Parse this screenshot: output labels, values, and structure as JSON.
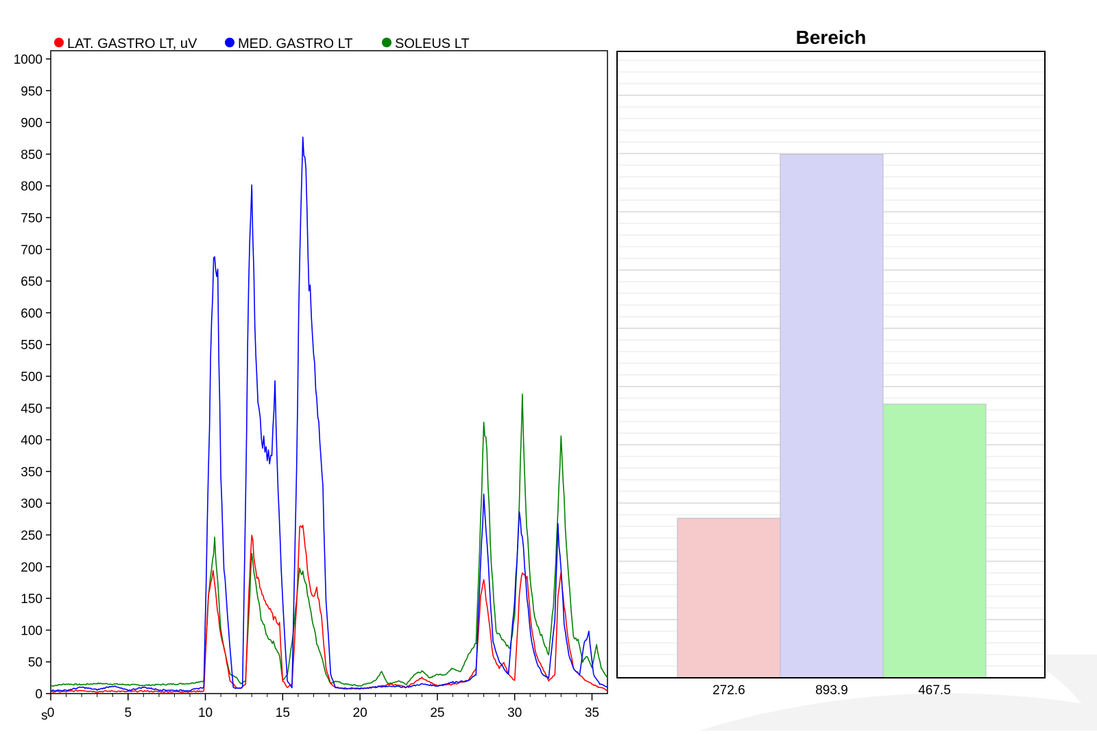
{
  "line_chart": {
    "legend": [
      {
        "label": "LAT. GASTRO LT, uV",
        "color": "#ff0000"
      },
      {
        "label": "MED. GASTRO LT",
        "color": "#0000ff"
      },
      {
        "label": "SOLEUS LT",
        "color": "#008000"
      }
    ],
    "x_unit_label": "s"
  },
  "bar_chart": {
    "title": "Bereich"
  },
  "chart_data": [
    {
      "type": "line",
      "title": "",
      "xlabel": "s",
      "ylabel": "",
      "xlim": [
        0,
        36
      ],
      "ylim": [
        0,
        1000
      ],
      "x_ticks": [
        0,
        5,
        10,
        15,
        20,
        25,
        30,
        35
      ],
      "y_ticks": [
        0,
        50,
        100,
        150,
        200,
        250,
        300,
        350,
        400,
        450,
        500,
        550,
        600,
        650,
        700,
        750,
        800,
        850,
        900,
        950,
        1000
      ],
      "grid": false,
      "legend_position": "top",
      "series": [
        {
          "name": "LAT. GASTRO LT, uV",
          "color": "#ff0000",
          "x": [
            0,
            1,
            2,
            3,
            4,
            5,
            6,
            7,
            8,
            9,
            9.9,
            10.2,
            10.5,
            10.7,
            11,
            11.3,
            11.6,
            12,
            12.3,
            12.6,
            12.8,
            13,
            13.2,
            13.6,
            14,
            14.4,
            14.8,
            15,
            15.3,
            15.6,
            15.9,
            16.1,
            16.3,
            16.6,
            16.9,
            17.2,
            17.5,
            17.8,
            18.1,
            18.4,
            19,
            20,
            21,
            22,
            23,
            24,
            25,
            26,
            27,
            27.5,
            27.8,
            28,
            28.3,
            28.6,
            29,
            29.3,
            29.6,
            30,
            30.3,
            30.5,
            30.8,
            31.1,
            31.4,
            31.8,
            32.2,
            32.6,
            32.8,
            33,
            33.2,
            33.5,
            33.8,
            34.2,
            34.6,
            35,
            35.4,
            35.8,
            36
          ],
          "values": [
            3,
            3,
            5,
            3,
            4,
            3,
            4,
            3,
            3,
            3,
            4,
            160,
            190,
            150,
            90,
            60,
            20,
            10,
            8,
            15,
            150,
            255,
            200,
            160,
            140,
            120,
            110,
            20,
            10,
            15,
            140,
            260,
            270,
            200,
            150,
            165,
            120,
            40,
            15,
            10,
            8,
            8,
            10,
            15,
            10,
            25,
            12,
            15,
            20,
            40,
            150,
            185,
            120,
            60,
            40,
            50,
            30,
            20,
            150,
            195,
            180,
            100,
            60,
            40,
            20,
            30,
            150,
            190,
            140,
            80,
            40,
            30,
            20,
            15,
            10,
            8,
            5
          ]
        },
        {
          "name": "MED. GASTRO LT",
          "color": "#0000ff",
          "x": [
            0,
            1,
            2,
            3,
            4,
            5,
            6,
            7,
            8,
            9,
            9.9,
            10.2,
            10.4,
            10.6,
            10.8,
            11,
            11.2,
            11.5,
            11.8,
            12.1,
            12.4,
            12.6,
            12.8,
            13,
            13.2,
            13.4,
            13.7,
            14,
            14.3,
            14.5,
            14.7,
            14.9,
            15.1,
            15.3,
            15.6,
            15.9,
            16.1,
            16.3,
            16.5,
            16.7,
            17,
            17.2,
            17.4,
            17.6,
            17.8,
            18.1,
            18.4,
            19,
            20,
            21,
            22,
            23,
            24,
            25,
            26,
            27,
            27.5,
            27.8,
            28,
            28.3,
            28.6,
            29,
            29.3,
            29.6,
            30,
            30.3,
            30.5,
            30.8,
            31.1,
            31.4,
            31.8,
            32.2,
            32.6,
            32.8,
            33,
            33.2,
            33.5,
            33.8,
            34.2,
            34.5,
            34.8,
            35.1,
            35.5,
            36
          ],
          "values": [
            5,
            5,
            10,
            6,
            12,
            5,
            10,
            6,
            5,
            5,
            10,
            350,
            600,
            710,
            650,
            350,
            200,
            100,
            10,
            8,
            10,
            300,
            650,
            810,
            600,
            450,
            400,
            370,
            380,
            480,
            330,
            200,
            100,
            20,
            10,
            350,
            700,
            880,
            800,
            650,
            540,
            470,
            400,
            320,
            150,
            30,
            10,
            8,
            8,
            10,
            12,
            10,
            15,
            12,
            18,
            20,
            30,
            210,
            310,
            200,
            80,
            50,
            40,
            30,
            150,
            280,
            250,
            150,
            80,
            50,
            30,
            25,
            120,
            260,
            200,
            110,
            60,
            40,
            30,
            80,
            95,
            30,
            15,
            10
          ]
        },
        {
          "name": "SOLEUS LT",
          "color": "#008000",
          "x": [
            0,
            1,
            2,
            3,
            4,
            5,
            6,
            7,
            8,
            9,
            9.9,
            10.2,
            10.4,
            10.6,
            10.8,
            11,
            11.3,
            11.6,
            12,
            12.3,
            12.6,
            12.8,
            13,
            13.2,
            13.6,
            14,
            14.4,
            14.8,
            15,
            15.3,
            15.6,
            15.9,
            16.1,
            16.3,
            16.6,
            16.9,
            17.2,
            17.5,
            17.8,
            18.1,
            18.4,
            19,
            20,
            21,
            21.4,
            21.8,
            22.5,
            23,
            23.5,
            24,
            24.5,
            25,
            25.5,
            26,
            26.5,
            27,
            27.5,
            27.8,
            28,
            28.2,
            28.5,
            28.8,
            29.1,
            29.4,
            29.7,
            30,
            30.3,
            30.5,
            30.7,
            31,
            31.3,
            31.6,
            31.9,
            32.2,
            32.5,
            32.8,
            33,
            33.2,
            33.5,
            33.8,
            34.1,
            34.4,
            34.7,
            35,
            35.3,
            35.6,
            36
          ],
          "values": [
            12,
            15,
            14,
            16,
            15,
            14,
            13,
            14,
            15,
            16,
            20,
            150,
            200,
            240,
            180,
            100,
            60,
            30,
            25,
            15,
            20,
            120,
            220,
            180,
            120,
            90,
            80,
            60,
            20,
            30,
            80,
            150,
            200,
            190,
            160,
            120,
            80,
            60,
            30,
            15,
            20,
            15,
            12,
            20,
            35,
            15,
            20,
            15,
            30,
            35,
            25,
            30,
            30,
            40,
            35,
            60,
            80,
            270,
            430,
            380,
            200,
            100,
            90,
            80,
            70,
            120,
            300,
            460,
            300,
            180,
            120,
            100,
            80,
            60,
            140,
            280,
            420,
            300,
            180,
            90,
            85,
            50,
            60,
            40,
            75,
            40,
            25
          ]
        }
      ]
    },
    {
      "type": "bar",
      "title": "Bereich",
      "xlabel": "",
      "ylabel": "",
      "categories": [
        "272.6",
        "893.9",
        "467.5"
      ],
      "values": [
        272.6,
        893.9,
        467.5
      ],
      "colors": [
        "#f6c9cb",
        "#d5d4f7",
        "#b1f5b0"
      ],
      "ylim": [
        0,
        1070
      ],
      "grid": true,
      "legend_position": "none"
    }
  ]
}
